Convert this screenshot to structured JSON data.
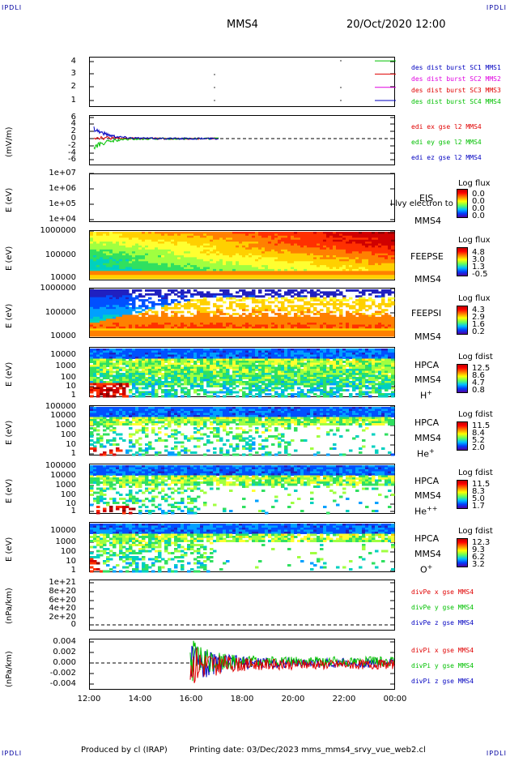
{
  "header": {
    "corner_label": "IPDLI",
    "spacecraft": "MMS4",
    "date_time": "20/Oct/2020 12:00"
  },
  "footer": {
    "produced_by": "Produced by cl (IRAP)",
    "printing_date": "Printing date: 03/Dec/2023",
    "script": "mms_mms4_srvy_vue_web2.cl"
  },
  "colors": {
    "red": "#e00000",
    "green": "#00c000",
    "blue": "#0000c0",
    "magenta": "#e000e0"
  },
  "x_axis": {
    "ticks": [
      "12:00",
      "14:00",
      "16:00",
      "18:00",
      "20:00",
      "22:00",
      "00:00"
    ]
  },
  "chart_data": [
    {
      "type": "line",
      "title": "",
      "ylabel": "",
      "yticks": [
        "4",
        "3",
        "2",
        "1"
      ],
      "ylim": [
        0.5,
        4.5
      ],
      "series": [
        {
          "name": "des dist burst SC1 MMS1",
          "color": "#00c000"
        },
        {
          "name": "des dist burst SC2 MMS2",
          "color": "#e00000"
        },
        {
          "name": "des dist burst SC3 MMS3",
          "color": "#e000e0"
        },
        {
          "name": "des dist burst SC4 MMS4",
          "color": "#0000c0"
        }
      ]
    },
    {
      "type": "line",
      "ylabel": "(mV/m)",
      "yticks": [
        "6",
        "4",
        "2",
        "0",
        "-2",
        "-4",
        "-6"
      ],
      "ylim": [
        -6,
        6
      ],
      "series": [
        {
          "name": "edi ex gse l2 MMS4",
          "color": "#e00000"
        },
        {
          "name": "edi ey gse l2 MMS4",
          "color": "#00c000"
        },
        {
          "name": "edi ez gse l2 MMS4",
          "color": "#0000c0"
        }
      ]
    },
    {
      "type": "heatmap",
      "ylabel": "E (eV)",
      "yticks": [
        "1e+07",
        "1e+06",
        "1e+05",
        "1e+04"
      ],
      "instrument": "EIS",
      "spacecraft": "MMS4",
      "overlay_text": "l lvy electron to",
      "colorbar_title": "Log flux",
      "colorbar_values": [
        "0.0",
        "0.0",
        "0.0",
        "0.0"
      ]
    },
    {
      "type": "heatmap",
      "ylabel": "E (eV)",
      "yticks": [
        "1000000",
        "100000",
        "10000"
      ],
      "instrument": "FEEPSE",
      "spacecraft": "MMS4",
      "colorbar_title": "Log flux",
      "colorbar_values": [
        "4.8",
        "3.0",
        "1.3",
        "-0.5"
      ]
    },
    {
      "type": "heatmap",
      "ylabel": "E (eV)",
      "yticks": [
        "1000000",
        "100000",
        "10000"
      ],
      "instrument": "FEEPSI",
      "spacecraft": "MMS4",
      "colorbar_title": "Log flux",
      "colorbar_values": [
        "4.3",
        "2.9",
        "1.6",
        "0.2"
      ]
    },
    {
      "type": "heatmap",
      "ylabel": "E (eV)",
      "yticks": [
        "10000",
        "1000",
        "100",
        "10",
        "1"
      ],
      "instrument": "HPCA",
      "spacecraft": "MMS4",
      "species": "H",
      "species_charge": "+",
      "colorbar_title": "Log fdist",
      "colorbar_values": [
        "12.5",
        "8.6",
        "4.7",
        "0.8"
      ]
    },
    {
      "type": "heatmap",
      "ylabel": "E (eV)",
      "yticks": [
        "100000",
        "10000",
        "1000",
        "100",
        "10",
        "1"
      ],
      "instrument": "HPCA",
      "spacecraft": "MMS4",
      "species": "He",
      "species_charge": "+",
      "colorbar_title": "Log fdist",
      "colorbar_values": [
        "11.5",
        "8.4",
        "5.2",
        "2.0"
      ]
    },
    {
      "type": "heatmap",
      "ylabel": "E (eV)",
      "yticks": [
        "100000",
        "10000",
        "1000",
        "100",
        "10",
        "1"
      ],
      "instrument": "HPCA",
      "spacecraft": "MMS4",
      "species": "He",
      "species_charge": "++",
      "colorbar_title": "Log fdist",
      "colorbar_values": [
        "11.5",
        "8.3",
        "5.0",
        "1.7"
      ]
    },
    {
      "type": "heatmap",
      "ylabel": "E (eV)",
      "yticks": [
        "10000",
        "1000",
        "100",
        "10",
        "1"
      ],
      "instrument": "HPCA",
      "spacecraft": "MMS4",
      "species": "O",
      "species_charge": "+",
      "colorbar_title": "Log fdist",
      "colorbar_values": [
        "12.3",
        "9.3",
        "6.2",
        "3.2"
      ]
    },
    {
      "type": "line",
      "ylabel": "(nPa/km)",
      "yticks": [
        "1e+21",
        "8e+20",
        "6e+20",
        "4e+20",
        "2e+20",
        "0"
      ],
      "ylim": [
        0,
        1e+21
      ],
      "series": [
        {
          "name": "divPe x gse MMS4",
          "color": "#e00000"
        },
        {
          "name": "divPe y gse MMS4",
          "color": "#00c000"
        },
        {
          "name": "divPe z gse MMS4",
          "color": "#0000c0"
        }
      ]
    },
    {
      "type": "line",
      "ylabel": "(nPa/km)",
      "yticks": [
        "0.004",
        "0.002",
        "0.000",
        "-0.002",
        "-0.004"
      ],
      "ylim": [
        -0.0045,
        0.0045
      ],
      "series": [
        {
          "name": "divPi x gse MMS4",
          "color": "#e00000"
        },
        {
          "name": "divPi y gse MMS4",
          "color": "#00c000"
        },
        {
          "name": "divPi z gse MMS4",
          "color": "#0000c0"
        }
      ]
    }
  ]
}
